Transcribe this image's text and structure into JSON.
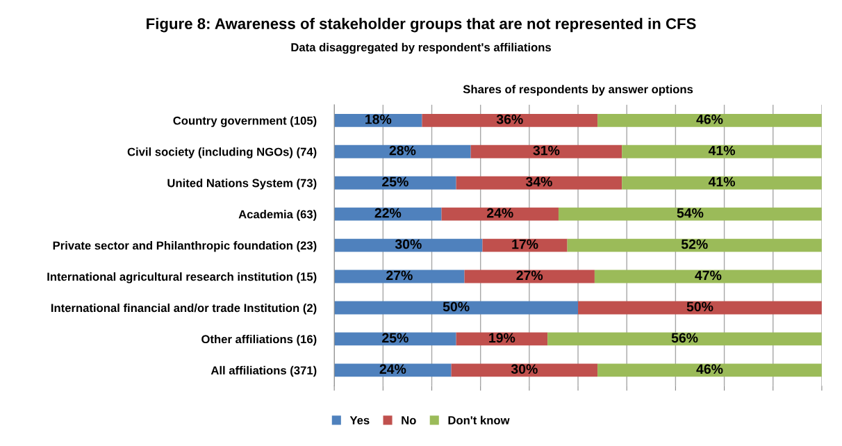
{
  "chart_data": {
    "type": "bar",
    "orientation": "horizontal",
    "stacked": true,
    "title": "Figure 8: Awareness of stakeholder groups that are not represented in CFS",
    "subtitle": "Data disaggregated by respondent's affiliations",
    "xlabel": "Shares of respondents by answer options",
    "categories": [
      "Country government (105)",
      "Civil society (including NGOs) (74)",
      "United Nations System (73)",
      "Academia (63)",
      "Private sector and Philanthropic foundation (23)",
      "International agricultural research institution (15)",
      "International financial and/or trade Institution (2)",
      "Other affiliations (16)",
      "All affiliations (371)"
    ],
    "series": [
      {
        "name": "Yes",
        "color": "#4f81bd",
        "values": [
          18,
          28,
          25,
          22,
          30.4,
          26.7,
          50,
          25,
          24
        ],
        "value_labels": [
          "18%",
          "28%",
          "25%",
          "22%",
          "30%",
          "27%",
          "50%",
          "25%",
          "24%"
        ]
      },
      {
        "name": "No",
        "color": "#c0504d",
        "values": [
          36,
          31,
          34,
          24,
          17.4,
          26.7,
          50,
          18.75,
          30
        ],
        "value_labels": [
          "36%",
          "31%",
          "34%",
          "24%",
          "17%",
          "27%",
          "50%",
          "19%",
          "30%"
        ]
      },
      {
        "name": "Don't know",
        "color": "#9bbb59",
        "values": [
          46,
          41,
          41,
          54,
          52.2,
          46.6,
          null,
          56.25,
          46
        ],
        "value_labels": [
          "46%",
          "41%",
          "41%",
          "54%",
          "52%",
          "47%",
          null,
          "56%",
          "46%"
        ]
      }
    ],
    "xlim": [
      0,
      100
    ],
    "xticks": [
      {
        "value": 0,
        "label": null
      },
      {
        "value": 10,
        "label": null
      },
      {
        "value": 20,
        "label": null
      },
      {
        "value": 30,
        "label": null
      },
      {
        "value": 40,
        "label": null
      },
      {
        "value": 50,
        "label": null
      },
      {
        "value": 60,
        "label": null
      },
      {
        "value": 70,
        "label": null
      },
      {
        "value": 80,
        "label": null
      },
      {
        "value": 90,
        "label": null
      },
      {
        "value": 100,
        "label": null
      }
    ],
    "grid": "x",
    "legend": "bottom",
    "tick_labels": "y"
  }
}
